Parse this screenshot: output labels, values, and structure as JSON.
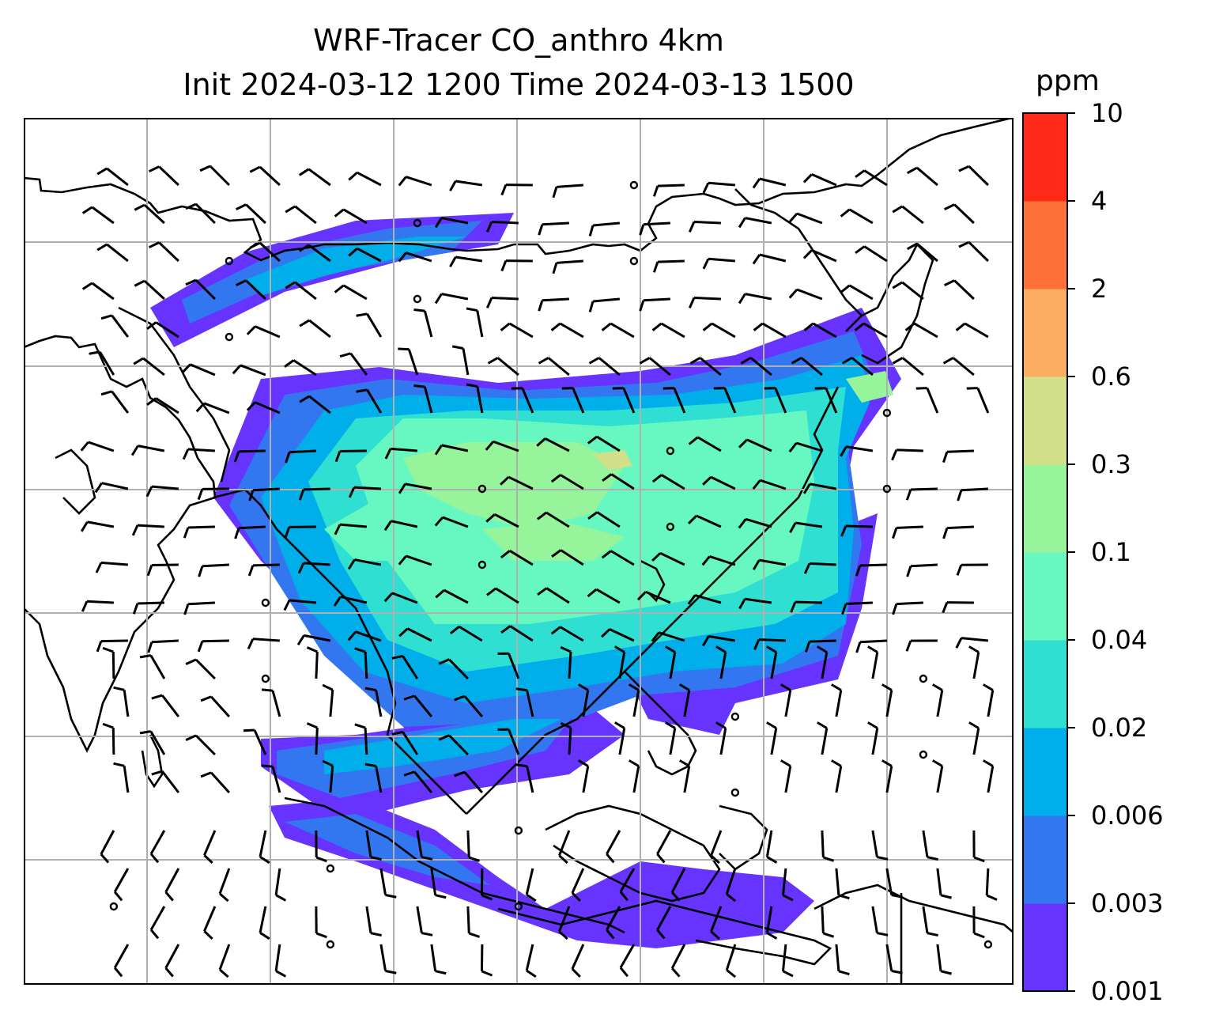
{
  "title": {
    "line1": "WRF-Tracer CO_anthro 4km",
    "line2": "Init 2024-03-12 1200 Time 2024-03-13 1500"
  },
  "colorbar": {
    "unit": "ppm",
    "levels": [
      "0.001",
      "0.003",
      "0.006",
      "0.02",
      "0.04",
      "0.1",
      "0.3",
      "0.6",
      "2",
      "4",
      "10"
    ],
    "colors": [
      "#6633ff",
      "#3377f0",
      "#00aeea",
      "#2fe0d2",
      "#66f8c0",
      "#96f59a",
      "#d2e08a",
      "#fbad62",
      "#ff7038",
      "#ff2a1a"
    ]
  },
  "map": {
    "background": "#ffffff",
    "gridline_color": "#b0b0b0",
    "coastline_color": "#000000",
    "barb_color": "#000000"
  }
}
